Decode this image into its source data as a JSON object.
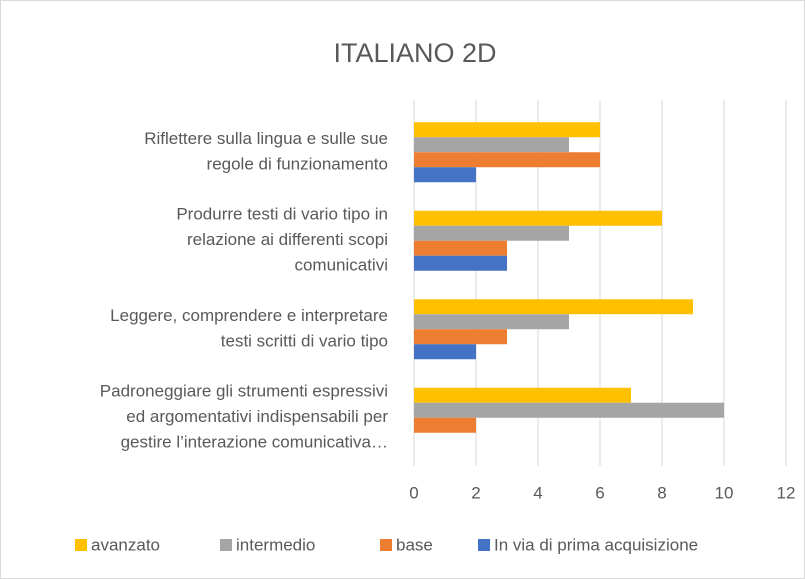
{
  "chart_data": {
    "type": "hbar",
    "title": "ITALIANO 2D",
    "categories": [
      [
        "Riflettere sulla lingua e sulle sue",
        "regole di funzionamento"
      ],
      [
        "Produrre testi di vario tipo in",
        "relazione ai differenti scopi",
        "comunicativi"
      ],
      [
        "Leggere, comprendere e interpretare",
        "testi scritti di vario tipo"
      ],
      [
        "Padroneggiare gli strumenti espressivi",
        "ed argomentativi indispensabili per",
        "gestire l’interazione  comunicativa…"
      ]
    ],
    "series": [
      {
        "name": "avanzato",
        "color": "#FFC000",
        "values": [
          6,
          8,
          9,
          7
        ]
      },
      {
        "name": "intermedio",
        "color": "#A5A5A5",
        "values": [
          5,
          5,
          5,
          10
        ]
      },
      {
        "name": "base",
        "color": "#ED7D31",
        "values": [
          6,
          3,
          3,
          2
        ]
      },
      {
        "name": "In via di prima acquisizione",
        "color": "#4472C4",
        "values": [
          2,
          3,
          2,
          0
        ]
      }
    ],
    "xlim": [
      0,
      12
    ],
    "xticks": [
      0,
      2,
      4,
      6,
      8,
      10,
      12
    ],
    "grid": true,
    "legend": "bottom"
  }
}
